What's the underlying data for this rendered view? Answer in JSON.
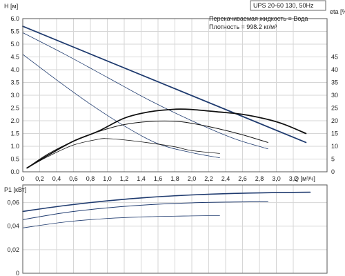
{
  "title": "UPS 20-60 130, 50Hz",
  "info_lines": [
    "Перекачиваемая жидкость = Вода",
    "Плотность = 998.2 кг/м³"
  ],
  "colors": {
    "head": "#1f3b6f",
    "power": "#1f3b6f",
    "eta": "#111111",
    "grid": "#d6d6d6"
  },
  "chart_data": [
    {
      "type": "line",
      "xlabel": "Q [м³/ч]",
      "ylabel": "H [м]",
      "y2label": "eta [%]",
      "xlim": [
        0,
        3.6
      ],
      "ylim": [
        0,
        6.0
      ],
      "y2lim": [
        0,
        60
      ],
      "x_ticks": [
        "0",
        "0,2",
        "0,4",
        "0,6",
        "0,8",
        "1,0",
        "1,2",
        "1,4",
        "1,6",
        "1,8",
        "2,0",
        "2,2",
        "2,4",
        "2,6",
        "2,8",
        "3,0",
        "3,2"
      ],
      "y_ticks": [
        "0.0",
        "0.5",
        "1.0",
        "1.5",
        "2.0",
        "2.5",
        "3.0",
        "3.5",
        "4.0",
        "4.5",
        "5.0",
        "5.5",
        "6.0"
      ],
      "y2_ticks": [
        "0",
        "5",
        "10",
        "15",
        "20",
        "25",
        "30",
        "35",
        "40",
        "45"
      ],
      "grid": true,
      "series": [
        {
          "axis": "left",
          "width": 1.8,
          "x": [
            0,
            3.35
          ],
          "y": [
            5.7,
            1.15
          ]
        },
        {
          "axis": "left",
          "width": 0.8,
          "x": [
            0,
            0.5,
            1.0,
            1.5,
            2.0,
            2.5,
            2.9
          ],
          "y": [
            5.45,
            4.6,
            3.7,
            2.8,
            2.0,
            1.3,
            0.9
          ]
        },
        {
          "axis": "left",
          "width": 0.8,
          "x": [
            0,
            0.4,
            0.8,
            1.2,
            1.6,
            2.0,
            2.33
          ],
          "y": [
            4.6,
            3.6,
            2.65,
            1.8,
            1.1,
            0.75,
            0.55
          ]
        },
        {
          "axis": "right",
          "width": 1.8,
          "x": [
            0.05,
            0.3,
            0.6,
            0.9,
            1.2,
            1.5,
            1.8,
            2.0,
            2.3,
            2.6,
            2.9,
            3.1,
            3.35
          ],
          "y": [
            1.5,
            6.5,
            12.0,
            16.0,
            21.0,
            23.5,
            24.5,
            24.4,
            23.5,
            22.5,
            20.5,
            18.5,
            15.0
          ]
        },
        {
          "axis": "right",
          "width": 1.0,
          "x": [
            0.05,
            0.3,
            0.6,
            0.9,
            1.2,
            1.5,
            1.8,
            2.0,
            2.3,
            2.6,
            2.9
          ],
          "y": [
            1.5,
            7.0,
            12.0,
            15.8,
            18.5,
            19.7,
            19.8,
            19.0,
            17.0,
            14.5,
            11.5
          ]
        },
        {
          "axis": "right",
          "width": 0.8,
          "x": [
            0.05,
            0.3,
            0.6,
            0.9,
            1.0,
            1.2,
            1.5,
            1.8,
            2.0,
            2.33
          ],
          "y": [
            1.5,
            6.0,
            10.5,
            12.8,
            13.0,
            12.5,
            11.3,
            9.8,
            8.3,
            7.2
          ]
        }
      ]
    },
    {
      "type": "line",
      "xlabel": "",
      "ylabel": "P1 [кВт]",
      "xlim": [
        0,
        3.6
      ],
      "ylim": [
        0,
        0.075
      ],
      "y_ticks": [
        "0",
        "0,02",
        "0,04",
        "0,06"
      ],
      "grid": true,
      "series": [
        {
          "width": 1.6,
          "x": [
            0,
            0.5,
            1.0,
            1.5,
            2.0,
            2.5,
            3.0,
            3.4
          ],
          "y": [
            0.0525,
            0.0575,
            0.0615,
            0.0645,
            0.0665,
            0.0678,
            0.0685,
            0.0688
          ]
        },
        {
          "width": 1.0,
          "x": [
            0,
            0.5,
            1.0,
            1.5,
            2.0,
            2.5,
            2.9
          ],
          "y": [
            0.0455,
            0.0515,
            0.0555,
            0.0582,
            0.0598,
            0.0605,
            0.0608
          ]
        },
        {
          "width": 0.8,
          "x": [
            0,
            0.5,
            1.0,
            1.5,
            2.0,
            2.33
          ],
          "y": [
            0.0385,
            0.0435,
            0.0465,
            0.048,
            0.0487,
            0.049
          ]
        }
      ]
    }
  ]
}
